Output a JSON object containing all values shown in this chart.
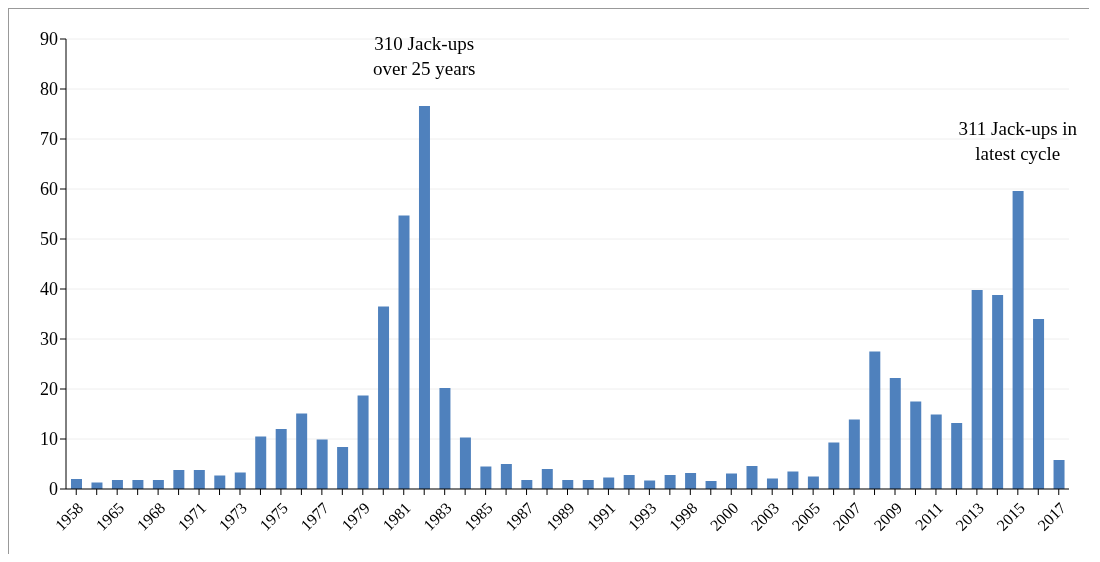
{
  "chart_data": {
    "type": "bar",
    "categories": [
      "1958",
      null,
      "1965",
      null,
      "1968",
      null,
      "1971",
      null,
      "1973",
      null,
      "1975",
      null,
      "1977",
      null,
      "1979",
      null,
      "1981",
      null,
      "1983",
      null,
      "1985",
      null,
      "1987",
      null,
      "1989",
      null,
      "1991",
      null,
      "1993",
      null,
      "1998",
      null,
      "2000",
      null,
      "2003",
      null,
      "2005",
      null,
      "2007",
      null,
      "2009",
      null,
      "2011",
      null,
      "2013",
      null,
      "2015",
      null,
      "2017"
    ],
    "values": [
      2.0,
      1.3,
      1.8,
      1.8,
      1.8,
      3.8,
      3.8,
      2.7,
      3.3,
      10.5,
      12.0,
      15.1,
      9.9,
      8.4,
      18.7,
      36.5,
      54.7,
      76.6,
      20.2,
      10.3,
      4.5,
      5.0,
      1.8,
      4.0,
      1.8,
      1.8,
      2.3,
      2.8,
      1.7,
      2.8,
      3.2,
      1.6,
      3.1,
      4.6,
      2.1,
      3.5,
      2.5,
      9.3,
      13.9,
      27.5,
      22.2,
      17.5,
      14.9,
      13.2,
      39.8,
      38.8,
      59.6,
      34.0,
      5.8
    ],
    "color": "#4f81bd",
    "ylim": [
      0,
      90
    ],
    "yticks": [
      0,
      10,
      20,
      30,
      40,
      50,
      60,
      70,
      80,
      90
    ],
    "grid": "y",
    "annotations": [
      "310 Jack-ups\nover 25 years",
      "311 Jack-ups in\nlatest cycle"
    ]
  }
}
